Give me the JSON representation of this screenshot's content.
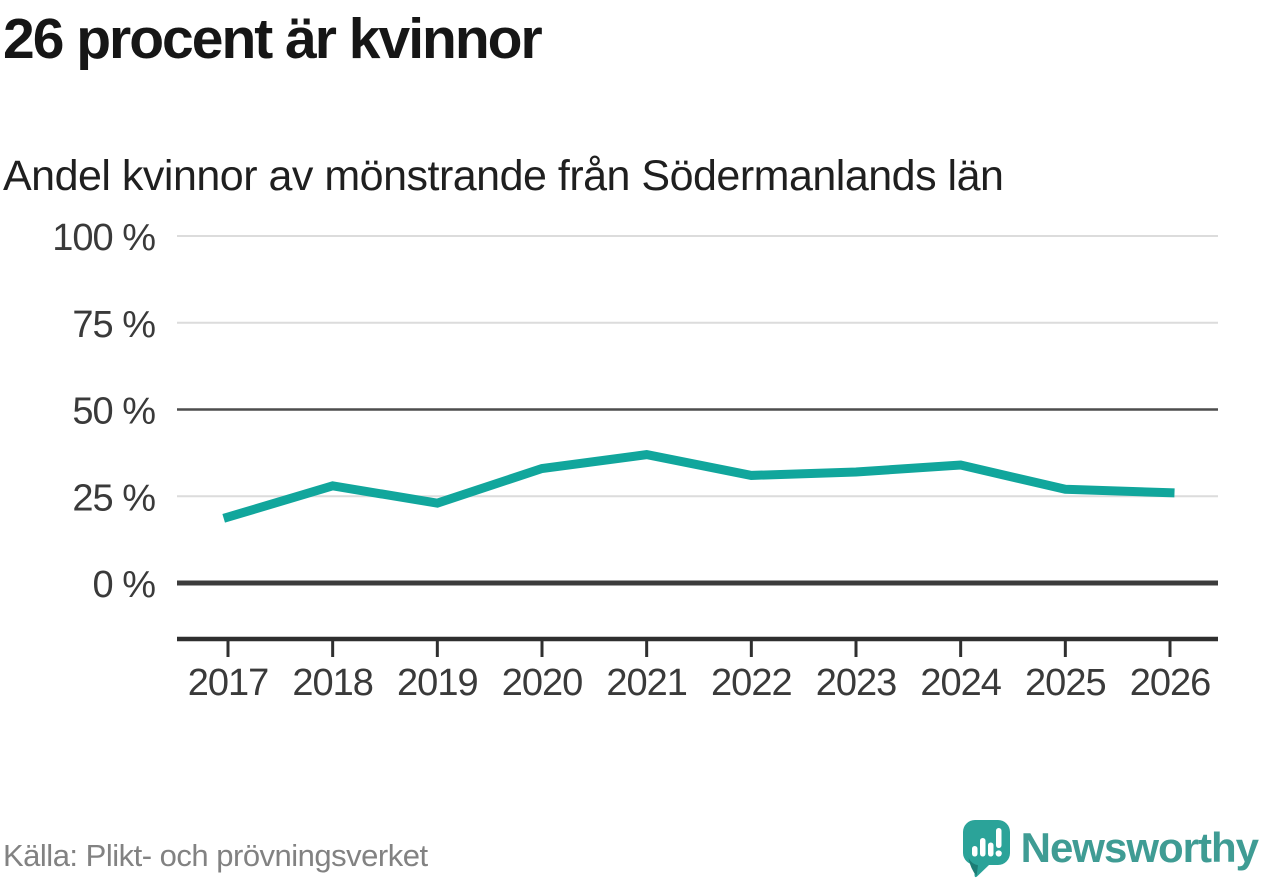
{
  "header": {
    "title": "26 procent är kvinnor",
    "subtitle": "Andel kvinnor av mönstrande från Södermanlands län"
  },
  "chart_data": {
    "type": "line",
    "title": "26 procent är kvinnor",
    "subtitle": "Andel kvinnor av mönstrande från Södermanlands län",
    "categories": [
      "2017",
      "2018",
      "2019",
      "2020",
      "2021",
      "2022",
      "2023",
      "2024",
      "2025",
      "2026"
    ],
    "values": [
      19,
      28,
      23,
      33,
      37,
      31,
      32,
      34,
      27,
      26
    ],
    "unit": "%",
    "ylim": [
      0,
      100
    ],
    "yticks": [
      {
        "value": 0,
        "label": "0 %",
        "emphasis": "strong"
      },
      {
        "value": 25,
        "label": "25 %",
        "emphasis": "light"
      },
      {
        "value": 50,
        "label": "50 %",
        "emphasis": "medium"
      },
      {
        "value": 75,
        "label": "75 %",
        "emphasis": "light"
      },
      {
        "value": 100,
        "label": "100 %",
        "emphasis": "light"
      }
    ],
    "grid": true,
    "legend": "none",
    "line_color": "#11a69c"
  },
  "footer": {
    "source": "Källa: Plikt- och prövningsverket"
  },
  "branding": {
    "name": "Newsworthy",
    "logo_icon": "newsworthy-speech-bubble-bar-chart-icon",
    "text_color": "#3f9c94",
    "icon_color": "#2ba399",
    "icon_shadow_color": "#1c7d75"
  },
  "colors": {
    "accent": "#11a69c",
    "grid_light": "#dcdcdc",
    "grid_medium": "#4d4d4d",
    "grid_strong": "#3c3c3c",
    "axis": "#2f2f2f",
    "title_text": "#161616",
    "muted_text": "#828282"
  }
}
